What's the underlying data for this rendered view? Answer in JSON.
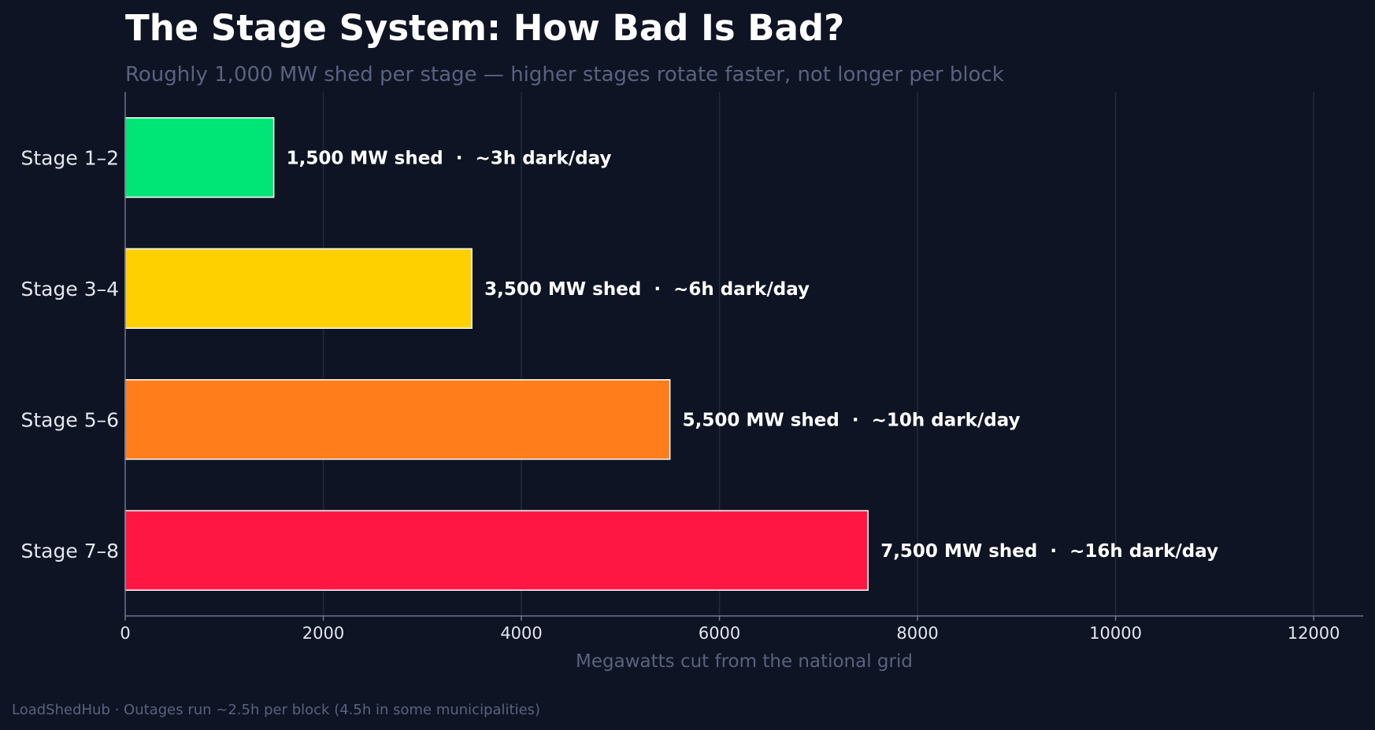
{
  "chart_data": {
    "type": "bar",
    "orientation": "horizontal",
    "title": "The Stage System: How Bad Is Bad?",
    "subtitle": "Roughly 1,000 MW shed per stage — higher stages rotate faster, not longer per block",
    "xlabel": "Megawatts cut from the national grid",
    "ylabel": "",
    "xlim": [
      0,
      12500
    ],
    "xticks": [
      0,
      2000,
      4000,
      6000,
      8000,
      10000,
      12000
    ],
    "grid": "vertical",
    "categories": [
      "Stage 1–2",
      "Stage 3–4",
      "Stage 5–6",
      "Stage 7–8"
    ],
    "values": [
      1500,
      3500,
      5500,
      7500
    ],
    "data_labels": [
      "1,500 MW shed  ·  ~3h dark/day",
      "3,500 MW shed  ·  ~6h dark/day",
      "5,500 MW shed  ·  ~10h dark/day",
      "7,500 MW shed  ·  ~16h dark/day"
    ],
    "colors": [
      "#00e676",
      "#ffd000",
      "#ff7d1a",
      "#ff1744"
    ]
  },
  "footer": {
    "text": "LoadShedHub · Outages run ~2.5h per block (4.5h in some municipalities)"
  },
  "theme": {
    "background": "#0f1424",
    "grid_color": "#232a3d",
    "axis_color": "#6d7591",
    "bar_edge": "#ffffff"
  }
}
